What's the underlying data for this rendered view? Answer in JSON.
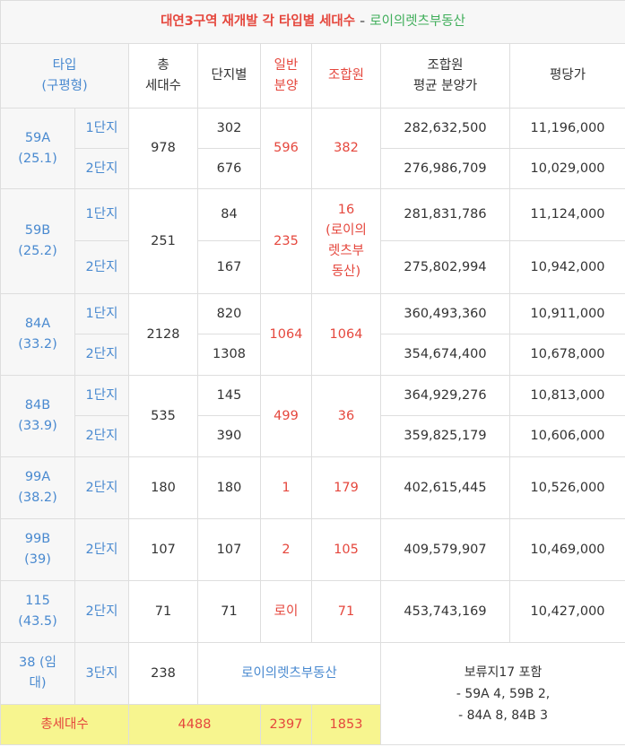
{
  "title": {
    "main": "대연3구역 재개발 각 타입별 세대수",
    "separator": "-",
    "source": "로이의렛츠부동산"
  },
  "header": {
    "type": [
      "타입",
      "(구평형)"
    ],
    "total": [
      "총",
      "세대수"
    ],
    "complex": [
      "단지별"
    ],
    "general": [
      "일반",
      "분양"
    ],
    "member": [
      "조합원"
    ],
    "member_avg": [
      "조합원",
      "평균 분양가"
    ],
    "price_per_pyeong": [
      "평당가"
    ]
  },
  "groups": [
    {
      "type": "59A",
      "size": "(25.1)",
      "total": "978",
      "general": "596",
      "member": "382",
      "units": [
        {
          "complex": "1단지",
          "count": "302",
          "avg": "282,632,500",
          "ppy": "11,196,000"
        },
        {
          "complex": "2단지",
          "count": "676",
          "avg": "276,986,709",
          "ppy": "10,029,000"
        }
      ]
    },
    {
      "type": "59B",
      "size": "(25.2)",
      "total": "251",
      "general": "235",
      "member": "16",
      "member_note": "(로이의렛츠부동산)",
      "units": [
        {
          "complex": "1단지",
          "count": "84",
          "avg": "281,831,786",
          "ppy": "11,124,000"
        },
        {
          "complex": "2단지",
          "count": "167",
          "avg": "275,802,994",
          "ppy": "10,942,000"
        }
      ]
    },
    {
      "type": "84A",
      "size": "(33.2)",
      "total": "2128",
      "general": "1064",
      "member": "1064",
      "units": [
        {
          "complex": "1단지",
          "count": "820",
          "avg": "360,493,360",
          "ppy": "10,911,000"
        },
        {
          "complex": "2단지",
          "count": "1308",
          "avg": "354,674,400",
          "ppy": "10,678,000"
        }
      ]
    },
    {
      "type": "84B",
      "size": "(33.9)",
      "total": "535",
      "general": "499",
      "member": "36",
      "units": [
        {
          "complex": "1단지",
          "count": "145",
          "avg": "364,929,276",
          "ppy": "10,813,000"
        },
        {
          "complex": "2단지",
          "count": "390",
          "avg": "359,825,179",
          "ppy": "10,606,000"
        }
      ]
    },
    {
      "type": "99A",
      "size": "(38.2)",
      "total": "180",
      "general": "1",
      "member": "179",
      "units": [
        {
          "complex": "2단지",
          "count": "180",
          "avg": "402,615,445",
          "ppy": "10,526,000"
        }
      ]
    },
    {
      "type": "99B",
      "size": "(39)",
      "total": "107",
      "general": "2",
      "member": "105",
      "units": [
        {
          "complex": "2단지",
          "count": "107",
          "avg": "409,579,907",
          "ppy": "10,469,000"
        }
      ]
    },
    {
      "type": "115",
      "size": "(43.5)",
      "total": "71",
      "general": "로이",
      "member": "71",
      "units": [
        {
          "complex": "2단지",
          "count": "71",
          "avg": "453,743,169",
          "ppy": "10,427,000"
        }
      ]
    }
  ],
  "rental": {
    "type": "38 (임대)",
    "complex": "3단지",
    "total": "238",
    "note": "로이의렛츠부동산"
  },
  "reserve_note": [
    "보류지17 포함",
    "- 59A 4, 59B 2,",
    "- 84A 8, 84B 3"
  ],
  "sum": {
    "label": "총세대수",
    "total": "4488",
    "general": "2397",
    "member": "1853"
  }
}
